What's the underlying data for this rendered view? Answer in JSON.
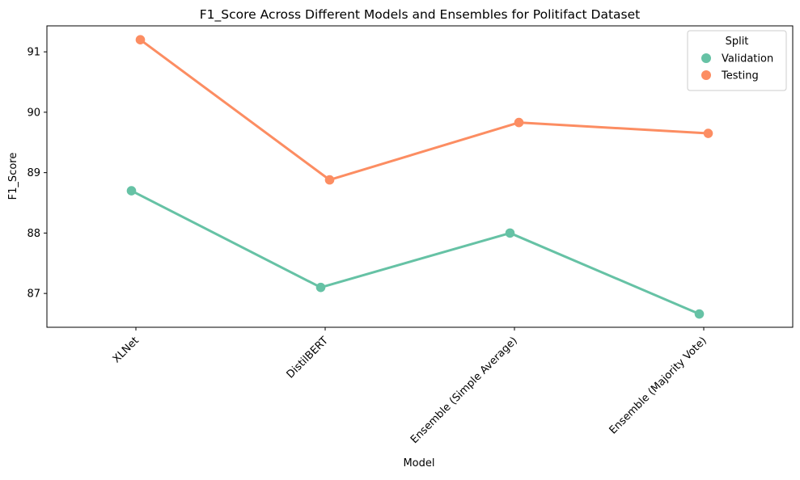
{
  "chart_data": {
    "type": "line",
    "title": "F1_Score Across Different Models and Ensembles for Politifact Dataset",
    "xlabel": "Model",
    "ylabel": "F1_Score",
    "categories": [
      "XLNet",
      "DistilBERT",
      "Ensemble (Simple Average)",
      "Ensemble (Majority Vote)"
    ],
    "ylim": [
      86.44,
      91.43
    ],
    "yticks": [
      87,
      88,
      89,
      90,
      91
    ],
    "grid": false,
    "legend": {
      "title": "Split",
      "placement": "top-right"
    },
    "series": [
      {
        "name": "Validation",
        "color": "#66c2a5",
        "values": [
          88.7,
          87.1,
          88.0,
          86.66
        ]
      },
      {
        "name": "Testing",
        "color": "#fc8d62",
        "values": [
          91.2,
          88.88,
          89.83,
          89.65
        ]
      }
    ]
  }
}
